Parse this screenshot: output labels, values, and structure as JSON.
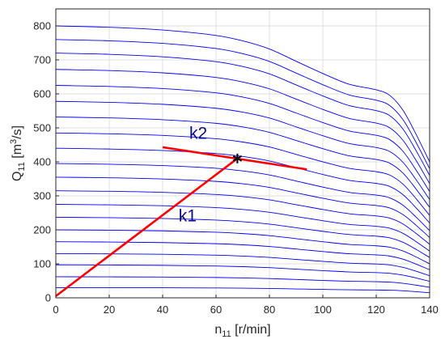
{
  "chart_data": {
    "type": "line",
    "xlabel": "n",
    "xlabel_sub": "11",
    "xlabel_unit": " [r/min]",
    "ylabel": "Q",
    "ylabel_sub": "11",
    "ylabel_unit_pre": " [m",
    "ylabel_unit_sup": "3",
    "ylabel_unit_post": "/s]",
    "xlim": [
      0,
      140
    ],
    "ylim": [
      0,
      850
    ],
    "xticks": [
      0,
      20,
      40,
      60,
      80,
      100,
      120,
      140
    ],
    "yticks": [
      0,
      100,
      200,
      300,
      400,
      500,
      600,
      700,
      800
    ],
    "grid": true,
    "curve_color": "#0000ff",
    "highlight_color": "#ff0000",
    "curve_family": {
      "x_samples": [
        0,
        20,
        40,
        60,
        70,
        80,
        90,
        100,
        110,
        120,
        125,
        130,
        135,
        140
      ],
      "start_values": [
        800,
        760,
        720,
        672,
        625,
        578,
        532,
        485,
        440,
        395,
        355,
        315,
        275,
        237,
        200,
        165,
        130,
        97,
        62,
        30
      ],
      "shape": [
        1.0,
        0.995,
        0.985,
        0.965,
        0.945,
        0.915,
        0.87,
        0.825,
        0.785,
        0.765,
        0.745,
        0.69,
        0.6,
        0.5
      ]
    },
    "lines": [
      {
        "label": "k1",
        "points": [
          [
            0,
            5
          ],
          [
            68,
            410
          ]
        ]
      },
      {
        "label": "k2",
        "points": [
          [
            40,
            443
          ],
          [
            94,
            378
          ]
        ]
      }
    ],
    "marker": {
      "x": 68,
      "y": 410,
      "symbol": "*"
    },
    "annotations": [
      {
        "text": "k2",
        "x": 50,
        "y": 468
      },
      {
        "text": "k1",
        "x": 46,
        "y": 225
      }
    ]
  }
}
